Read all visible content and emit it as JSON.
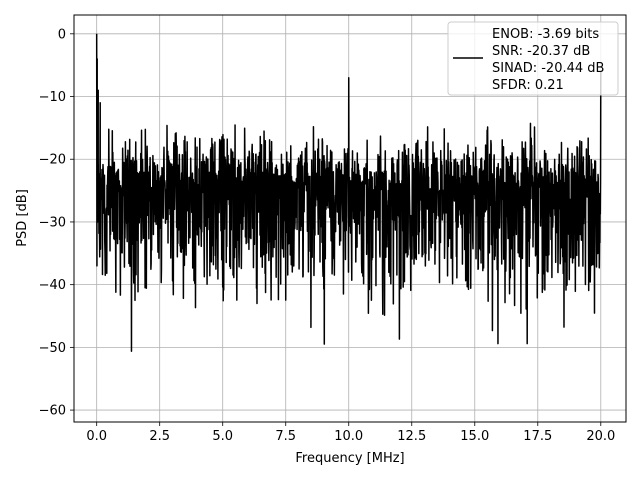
{
  "chart_data": {
    "type": "line",
    "title": "",
    "xlabel": "Frequency [MHz]",
    "ylabel": "PSD [dB]",
    "xlim": [
      -0.9,
      21.0
    ],
    "ylim": [
      -61.9,
      3.0
    ],
    "xticks": [
      0.0,
      2.5,
      5.0,
      7.5,
      10.0,
      12.5,
      15.0,
      17.5,
      20.0
    ],
    "xtick_labels": [
      "0.0",
      "2.5",
      "5.0",
      "7.5",
      "10.0",
      "12.5",
      "15.0",
      "17.5",
      "20.0"
    ],
    "yticks": [
      0,
      -10,
      -20,
      -30,
      -40,
      -50,
      -60
    ],
    "ytick_labels": [
      "0",
      "−10",
      "−20",
      "−30",
      "−40",
      "−50",
      "−60"
    ],
    "grid": true,
    "legend_position": "top-right",
    "legend_lines": [
      "ENOB: -3.69 bits",
      "SNR: -20.37 dB",
      "SINAD: -20.44 dB",
      "SFDR: 0.21"
    ],
    "line_color": "#000000",
    "series": [
      {
        "x_range": [
          0.0,
          20.0
        ],
        "noise_floor_db": -25,
        "noise_envelope_db": [
          -48,
          -12
        ],
        "dc_peak_db": 0.0,
        "peaks": [
          {
            "x": 10.0,
            "y": -7.0
          },
          {
            "x": 20.0,
            "y": -6.0
          }
        ]
      }
    ]
  }
}
